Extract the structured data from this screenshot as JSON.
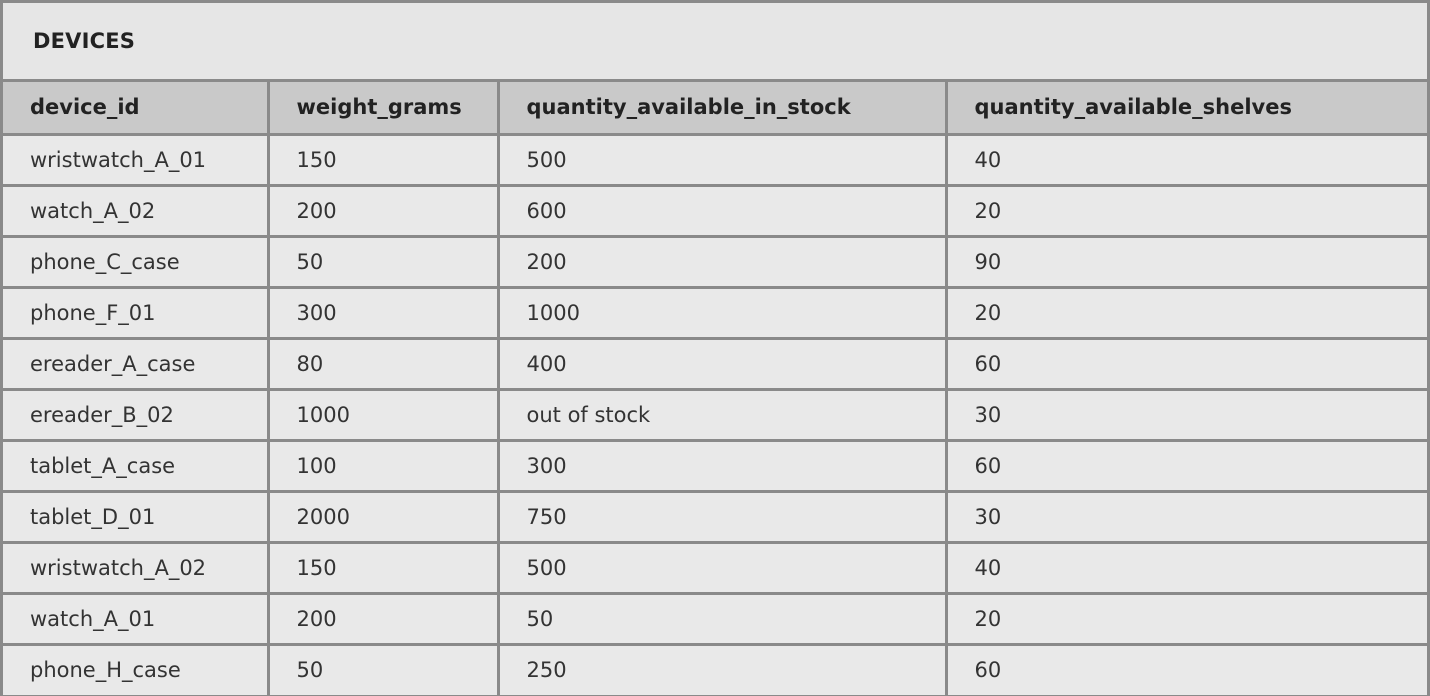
{
  "table": {
    "title": "DEVICES",
    "columns": [
      "device_id",
      "weight_grams",
      "quantity_available_in_stock",
      "quantity_available_shelves"
    ],
    "rows": [
      [
        "wristwatch_A_01",
        "150",
        "500",
        "40"
      ],
      [
        "watch_A_02",
        "200",
        "600",
        "20"
      ],
      [
        "phone_C_case",
        "50",
        "200",
        "90"
      ],
      [
        "phone_F_01",
        "300",
        "1000",
        "20"
      ],
      [
        "ereader_A_case",
        "80",
        "400",
        "60"
      ],
      [
        "ereader_B_02",
        "1000",
        "out of stock",
        "30"
      ],
      [
        "tablet_A_case",
        "100",
        "300",
        "60"
      ],
      [
        "tablet_D_01",
        "2000",
        "750",
        "30"
      ],
      [
        "wristwatch_A_02",
        "150",
        "500",
        "40"
      ],
      [
        "watch_A_01",
        "200",
        "50",
        "20"
      ],
      [
        "phone_H_case",
        "50",
        "250",
        "60"
      ]
    ]
  },
  "colors": {
    "border": "#8a8a8a",
    "header_background": "#c9c9c9",
    "cell_background": "#e9e9e9"
  }
}
